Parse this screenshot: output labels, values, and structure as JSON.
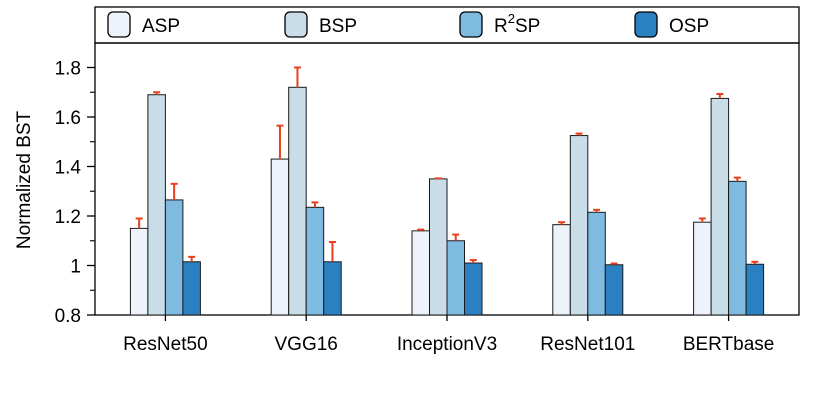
{
  "chart_data": {
    "type": "bar",
    "title": "",
    "xlabel": "",
    "ylabel": "Normalized BST",
    "ylim": [
      0.8,
      1.9
    ],
    "yticks": [
      0.8,
      1,
      1.2,
      1.4,
      1.6,
      1.8
    ],
    "ytick_labels": [
      "0.8",
      "1",
      "1.2",
      "1.4",
      "1.6",
      "1.8"
    ],
    "grid": false,
    "legend_position": "top",
    "categories": [
      "ResNet50",
      "VGG16",
      "InceptionV3",
      "ResNet101",
      "BERTbase"
    ],
    "series": [
      {
        "name": "ASP",
        "color": "#eef2fa",
        "values": [
          1.15,
          1.43,
          1.14,
          1.165,
          1.175
        ],
        "errors": [
          0.04,
          0.135,
          0.005,
          0.01,
          0.015
        ]
      },
      {
        "name": "BSP",
        "color": "#c9dde9",
        "values": [
          1.69,
          1.72,
          1.35,
          1.525,
          1.675
        ],
        "errors": [
          0.01,
          0.08,
          0.002,
          0.008,
          0.018
        ]
      },
      {
        "name": "R2SP",
        "label_main": "R",
        "label_sup": "2",
        "label_tail": "SP",
        "color": "#7fbae0",
        "values": [
          1.265,
          1.235,
          1.1,
          1.215,
          1.34
        ],
        "errors": [
          0.065,
          0.02,
          0.025,
          0.01,
          0.015
        ]
      },
      {
        "name": "OSP",
        "color": "#2a80c0",
        "values": [
          1.015,
          1.015,
          1.01,
          1.003,
          1.005
        ],
        "errors": [
          0.02,
          0.08,
          0.012,
          0.005,
          0.01
        ]
      }
    ],
    "error_color": "#e8401c"
  }
}
